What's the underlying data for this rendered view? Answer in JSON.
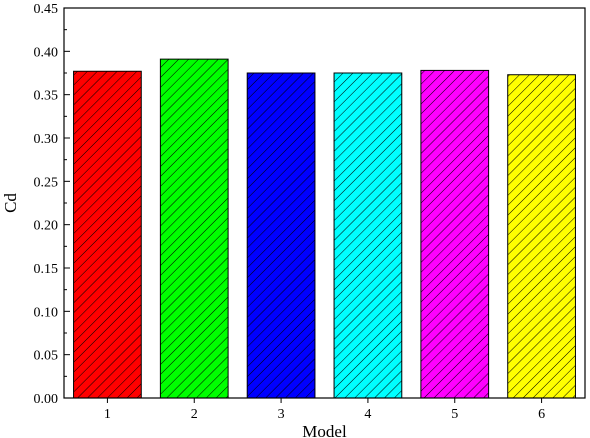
{
  "chart_data": {
    "type": "bar",
    "title": "",
    "xlabel": "Model",
    "ylabel": "Cd",
    "categories": [
      "1",
      "2",
      "3",
      "4",
      "5",
      "6"
    ],
    "values": [
      0.377,
      0.391,
      0.375,
      0.375,
      0.378,
      0.373
    ],
    "ylim": [
      0,
      0.45
    ],
    "y_ticks": [
      "0.00",
      "0.05",
      "0.10",
      "0.15",
      "0.20",
      "0.25",
      "0.30",
      "0.35",
      "0.40",
      "0.45"
    ],
    "bar_colors": [
      "#ff0000",
      "#00ff00",
      "#0000ff",
      "#00ffff",
      "#ff00ff",
      "#ffff00"
    ],
    "bar_fill_pattern": "diagonal-hatch",
    "hatch_color": "#000000",
    "grid": false,
    "legend": "none"
  }
}
